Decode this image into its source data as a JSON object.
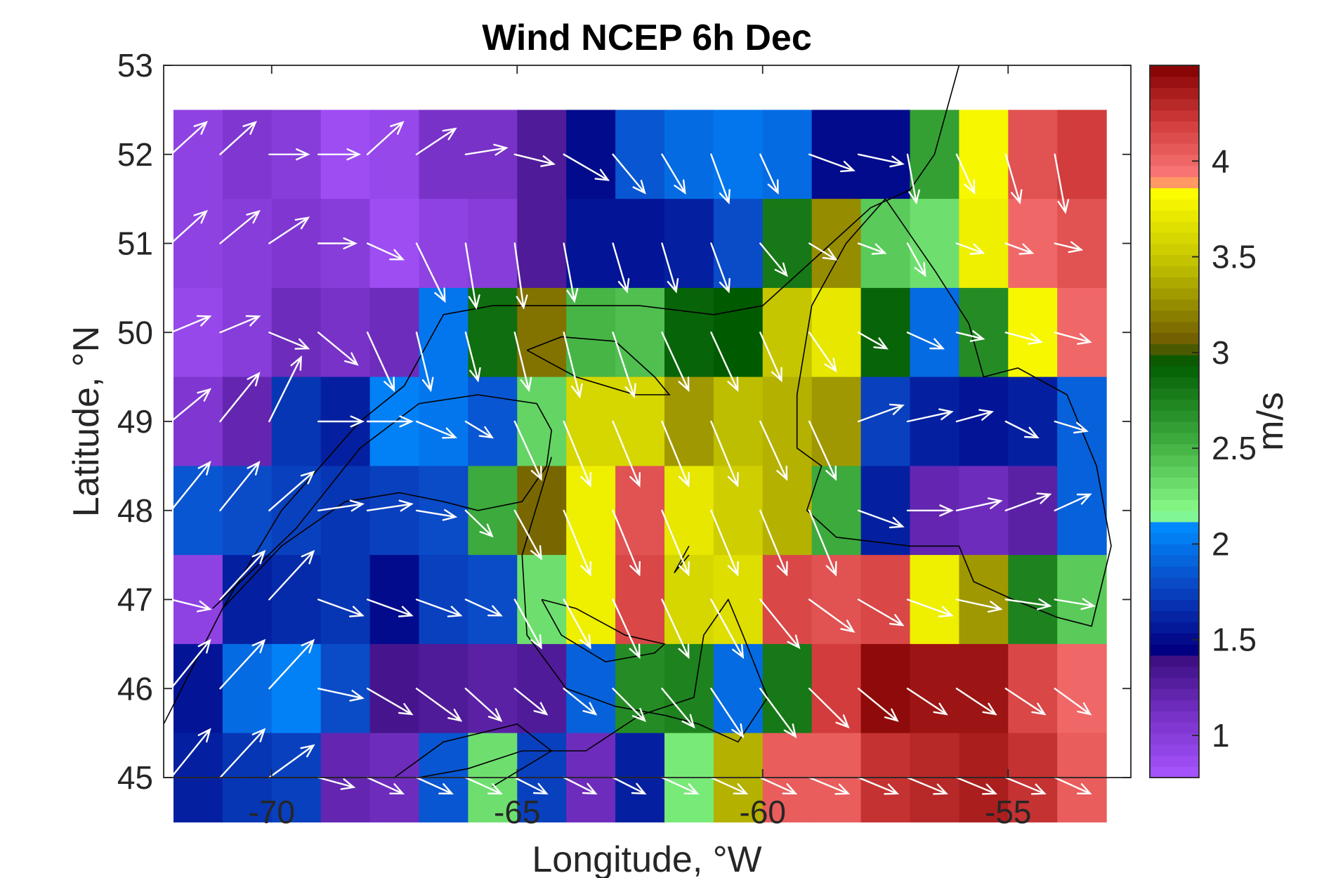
{
  "chart_data": {
    "type": "heatmap",
    "title": "Wind NCEP 6h Dec",
    "xlabel": "Longitude, °W",
    "ylabel": "Latitude, °N",
    "colorbar_label": "m/s",
    "xlim": [
      -72.2,
      -52.5
    ],
    "ylim": [
      45,
      53
    ],
    "xticks": [
      -70,
      -65,
      -60,
      -55
    ],
    "yticks": [
      45,
      46,
      47,
      48,
      49,
      50,
      51,
      52,
      53
    ],
    "clim": [
      0.78,
      4.5
    ],
    "colorbar_ticks": [
      1,
      1.5,
      2,
      2.5,
      3,
      3.5,
      4
    ],
    "grid": false,
    "overlay": "white wind vectors at each grid cell, black coastline",
    "grid_lon": [
      -71.5,
      -70.5,
      -69.5,
      -68.5,
      -67.5,
      -66.5,
      -65.5,
      -64.5,
      -63.5,
      -62.5,
      -61.5,
      -60.5,
      -59.5,
      -58.5,
      -57.5,
      -56.5,
      -55.5,
      -54.5,
      -53.5
    ],
    "grid_lat": [
      52,
      51,
      50,
      49,
      48,
      47,
      46,
      45
    ],
    "speed": [
      [
        0.95,
        1.05,
        1.0,
        0.85,
        0.9,
        1.1,
        1.1,
        1.3,
        1.5,
        1.85,
        1.95,
        2.0,
        1.95,
        1.5,
        1.5,
        2.6,
        3.8,
        4.1,
        4.2
      ],
      [
        0.95,
        1.0,
        1.05,
        1.0,
        0.85,
        0.95,
        1.0,
        1.3,
        1.55,
        1.55,
        1.6,
        1.8,
        2.8,
        3.25,
        2.4,
        2.3,
        3.75,
        4.0,
        4.1
      ],
      [
        0.9,
        1.0,
        1.15,
        1.1,
        1.15,
        2.0,
        2.85,
        3.15,
        2.5,
        2.45,
        2.9,
        2.95,
        3.5,
        3.7,
        2.9,
        1.95,
        2.7,
        3.8,
        4.0
      ],
      [
        1.05,
        1.2,
        1.7,
        1.6,
        2.05,
        2.0,
        1.85,
        2.35,
        3.6,
        3.6,
        3.3,
        3.45,
        3.4,
        3.3,
        1.75,
        1.6,
        1.55,
        1.6,
        1.9
      ],
      [
        1.85,
        1.8,
        1.75,
        1.7,
        1.75,
        1.8,
        2.55,
        3.1,
        3.75,
        4.1,
        3.7,
        3.55,
        3.4,
        2.55,
        1.6,
        1.2,
        1.15,
        1.25,
        1.9
      ],
      [
        0.95,
        1.6,
        1.65,
        1.7,
        1.5,
        1.75,
        1.8,
        2.3,
        3.75,
        4.15,
        3.6,
        3.65,
        4.15,
        4.1,
        4.15,
        3.75,
        3.3,
        2.75,
        2.4
      ],
      [
        1.55,
        1.95,
        2.05,
        1.8,
        1.35,
        1.3,
        1.25,
        1.3,
        1.9,
        2.7,
        2.75,
        1.95,
        2.8,
        4.2,
        4.45,
        4.4,
        4.4,
        4.15,
        4.0
      ],
      [
        1.6,
        1.7,
        1.75,
        1.2,
        1.15,
        1.85,
        2.3,
        1.75,
        1.15,
        1.6,
        2.25,
        3.4,
        4.05,
        4.05,
        4.25,
        4.3,
        4.35,
        4.25,
        4.05
      ]
    ],
    "wind_u": [
      [
        2.0,
        2.0,
        2.2,
        2.3,
        2.0,
        2.2,
        2.3,
        2.2,
        2.5,
        1.8,
        1.3,
        1.0,
        1.0,
        2.5,
        2.5,
        0.5,
        1.0,
        0.8,
        0.6
      ],
      [
        2.0,
        2.2,
        2.2,
        2.1,
        2.0,
        1.6,
        0.6,
        0.5,
        0.6,
        0.8,
        0.8,
        1.0,
        1.5,
        1.5,
        1.5,
        1.0,
        1.5,
        1.5,
        1.5
      ],
      [
        2.2,
        2.2,
        2.2,
        2.2,
        1.5,
        0.8,
        0.7,
        0.8,
        0.9,
        1.2,
        1.5,
        1.5,
        1.2,
        1.5,
        1.6,
        2.0,
        1.5,
        2.0,
        2.0
      ],
      [
        2.2,
        2.2,
        1.8,
        2.5,
        2.5,
        2.2,
        1.5,
        1.5,
        1.5,
        1.5,
        1.5,
        1.5,
        1.5,
        1.5,
        2.5,
        2.5,
        2.0,
        1.8,
        1.8
      ],
      [
        2.2,
        2.2,
        2.5,
        2.5,
        2.5,
        2.2,
        1.5,
        1.5,
        1.5,
        1.5,
        1.5,
        1.5,
        1.5,
        1.5,
        2.5,
        2.5,
        2.5,
        2.5,
        2.0
      ],
      [
        2.2,
        2.5,
        2.5,
        2.5,
        2.5,
        2.5,
        2.0,
        1.5,
        1.5,
        1.5,
        1.5,
        1.8,
        2.2,
        2.5,
        2.5,
        2.5,
        2.5,
        2.5,
        2.2
      ],
      [
        2.2,
        2.5,
        2.5,
        2.5,
        2.5,
        2.5,
        2.0,
        1.8,
        1.8,
        1.8,
        1.8,
        1.8,
        2.0,
        2.2,
        2.2,
        2.2,
        2.2,
        2.2,
        2.0
      ],
      [
        2.2,
        2.5,
        2.5,
        2.0,
        2.0,
        2.0,
        2.0,
        1.8,
        1.8,
        1.8,
        2.0,
        2.0,
        2.0,
        2.2,
        2.2,
        2.2,
        2.2,
        2.2,
        2.0
      ]
    ],
    "wind_v": [
      [
        1.0,
        1.0,
        0.0,
        0.0,
        1.0,
        0.8,
        0.2,
        -0.3,
        -0.8,
        -1.2,
        -1.2,
        -1.5,
        -1.2,
        -0.5,
        -0.3,
        -1.5,
        -1.2,
        -1.5,
        -1.8
      ],
      [
        1.0,
        1.0,
        0.8,
        0.0,
        -0.5,
        -1.8,
        -2.0,
        -2.0,
        -1.8,
        -1.5,
        -1.5,
        -1.5,
        -1.0,
        -0.5,
        -0.3,
        -1.0,
        -0.3,
        -0.3,
        -0.2
      ],
      [
        0.5,
        0.5,
        -0.5,
        -1.0,
        -1.8,
        -1.8,
        -1.5,
        -1.8,
        -2.0,
        -2.0,
        -1.8,
        -1.8,
        -1.5,
        -1.2,
        -0.5,
        -0.5,
        -0.2,
        -0.3,
        -0.3
      ],
      [
        1.0,
        1.5,
        2.0,
        0.0,
        0.0,
        -0.5,
        -0.5,
        -1.8,
        -2.0,
        -2.0,
        -2.0,
        -2.0,
        -1.8,
        -1.8,
        0.5,
        0.3,
        0.3,
        -0.5,
        -0.3
      ],
      [
        1.5,
        1.5,
        1.2,
        0.2,
        0.2,
        -0.2,
        -0.8,
        -1.5,
        -2.0,
        -2.0,
        -2.0,
        -2.0,
        -2.0,
        -2.0,
        -0.5,
        0.0,
        0.3,
        0.5,
        0.5
      ],
      [
        -0.3,
        1.5,
        1.5,
        -0.5,
        -0.5,
        -0.5,
        -0.5,
        -1.5,
        -1.5,
        -1.8,
        -1.8,
        -1.8,
        -1.5,
        -1.0,
        -0.8,
        -0.5,
        -0.3,
        -0.2,
        -0.2
      ],
      [
        1.5,
        1.5,
        1.5,
        -0.3,
        -0.8,
        -1.0,
        -1.0,
        -0.8,
        -0.8,
        -1.0,
        -1.2,
        -1.5,
        -1.5,
        -1.2,
        -1.0,
        -0.8,
        -0.8,
        -0.8,
        -0.8
      ],
      [
        1.5,
        1.5,
        1.0,
        -0.3,
        -0.5,
        -0.5,
        -0.5,
        -0.5,
        -0.5,
        -0.5,
        -0.5,
        -0.5,
        -0.5,
        -0.5,
        -0.5,
        -0.5,
        -0.5,
        -0.5,
        -0.5
      ]
    ]
  }
}
